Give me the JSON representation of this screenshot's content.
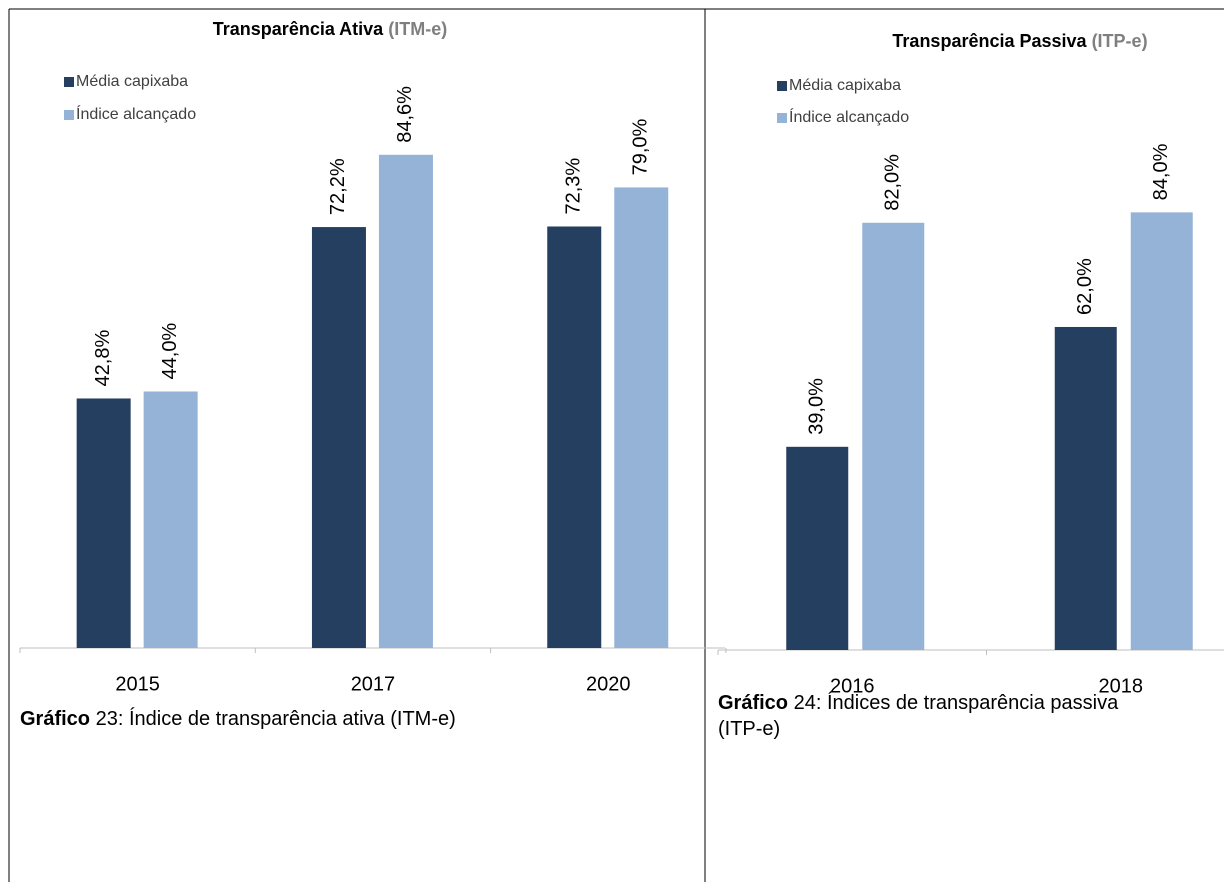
{
  "chart_data": [
    {
      "type": "bar",
      "title": "Transparência Ativa",
      "title_note": "(ITM-e)",
      "categories": [
        "2015",
        "2017",
        "2020"
      ],
      "series": [
        {
          "name": "Média capixaba",
          "color": "#243f60",
          "values": [
            42.8,
            72.2,
            72.3
          ],
          "value_labels": [
            "42,8%",
            "72,2%",
            "72,3%"
          ]
        },
        {
          "name": "Índice alcançado",
          "color": "#95b3d7",
          "values": [
            44.0,
            84.6,
            79.0
          ],
          "value_labels": [
            "44,0%",
            "84,6%",
            "79,0%"
          ]
        }
      ],
      "ylim": [
        0,
        100
      ]
    },
    {
      "type": "bar",
      "title": "Transparência Passiva",
      "title_note": "(ITP-e)",
      "categories": [
        "2016",
        "2018"
      ],
      "series": [
        {
          "name": "Média capixaba",
          "color": "#243f60",
          "values": [
            39.0,
            62.0
          ],
          "value_labels": [
            "39,0%",
            "62,0%"
          ]
        },
        {
          "name": "Índice alcançado",
          "color": "#95b3d7",
          "values": [
            82.0,
            84.0
          ],
          "value_labels": [
            "82,0%",
            "84,0%"
          ]
        }
      ],
      "ylim": [
        0,
        100
      ]
    }
  ],
  "captions": [
    {
      "label": "Gráfico",
      "text": "23: Índice de transparência ativa (ITM-e)"
    },
    {
      "label": "Gráfico",
      "text": "24: Índices de transparência passiva (ITP-e)"
    }
  ]
}
